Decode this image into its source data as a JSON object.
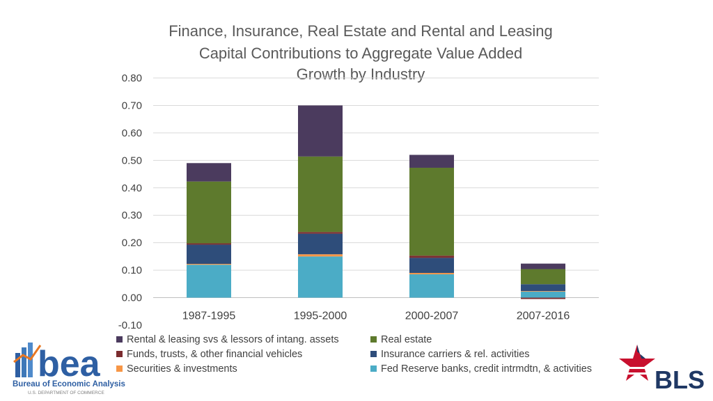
{
  "chart_data": {
    "type": "bar",
    "stacked": true,
    "title": [
      "Finance, Insurance, Real Estate and Rental and Leasing",
      "Capital Contributions to Aggregate Value Added",
      "Growth by Industry"
    ],
    "categories": [
      "1987-1995",
      "1995-2000",
      "2000-2007",
      "2007-2016"
    ],
    "ylim": [
      -0.1,
      0.8
    ],
    "yticks": [
      "0.80",
      "0.70",
      "0.60",
      "0.50",
      "0.40",
      "0.30",
      "0.20",
      "0.10",
      "0.00",
      "-0.10"
    ],
    "ytick_values": [
      0.8,
      0.7,
      0.6,
      0.5,
      0.4,
      0.3,
      0.2,
      0.1,
      0.0,
      -0.1
    ],
    "grid": true,
    "legend_position": "bottom",
    "series": [
      {
        "name": "Fed Reserve banks, credit intrmdtn, & activities",
        "color": "#4BACC6",
        "values": [
          0.12,
          0.15,
          0.085,
          0.022
        ]
      },
      {
        "name": "Securities & investments",
        "color": "#F79646",
        "values": [
          0.003,
          0.008,
          0.005,
          0.002
        ]
      },
      {
        "name": "Insurance carriers & rel. activities",
        "color": "#2E4D7A",
        "values": [
          0.07,
          0.075,
          0.055,
          0.025
        ]
      },
      {
        "name": "Funds, trusts, & other financial vehicles",
        "color": "#7B2C2F",
        "values": [
          0.005,
          0.006,
          0.008,
          -0.005
        ]
      },
      {
        "name": "Real estate",
        "color": "#5E7A2D",
        "values": [
          0.225,
          0.275,
          0.32,
          0.055
        ]
      },
      {
        "name": "Rental & leasing svs & lessors of intang. assets",
        "color": "#4B3B5E",
        "values": [
          0.067,
          0.186,
          0.047,
          0.02
        ]
      }
    ],
    "legend_order": [
      5,
      4,
      3,
      2,
      1,
      0
    ]
  },
  "logos": {
    "bea_text": "bea",
    "bea_sub": "Bureau of Economic Analysis",
    "bea_sub_small": "U.S. DEPARTMENT OF COMMERCE",
    "bls_text": "BLS"
  }
}
